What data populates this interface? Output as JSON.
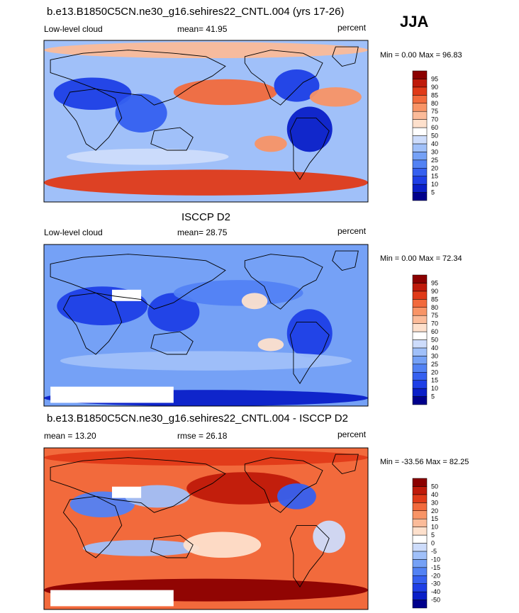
{
  "season": "JJA",
  "panels": [
    {
      "title": "b.e13.B1850C5CN.ne30_g16.sehires22_CNTL.004 (yrs 17-26)",
      "left_label": "Low-level cloud",
      "center_label": "mean=  41.95",
      "right_label": "percent",
      "minmax": "Min =    0.00 Max =   96.83"
    },
    {
      "title": "ISCCP D2",
      "left_label": "Low-level cloud",
      "center_label": "mean=  28.75",
      "right_label": "percent",
      "minmax": "Min =    0.00 Max =   72.34"
    },
    {
      "title": "b.e13.B1850C5CN.ne30_g16.sehires22_CNTL.004 - ISCCP D2",
      "left_label": "mean =  13.20",
      "center_label": "rmse =   26.18",
      "right_label": "percent",
      "minmax": "Min = -33.56 Max =   82.25"
    }
  ],
  "chart_data": [
    {
      "type": "heatmap",
      "title": "b.e13.B1850C5CN.ne30_g16.sehires22_CNTL.004 (yrs 17-26)",
      "field": "Low-level cloud",
      "units": "percent",
      "mean": 41.95,
      "min": 0.0,
      "max": 96.83,
      "colorbar_levels": [
        5,
        10,
        15,
        20,
        25,
        30,
        40,
        50,
        60,
        70,
        75,
        80,
        85,
        90,
        95
      ],
      "colorbar_colors": [
        "#00008c",
        "#0a1fc8",
        "#1e3fe6",
        "#3560f0",
        "#5282f4",
        "#75a1f6",
        "#a0c0f9",
        "#cddcfb",
        "#ffffff",
        "#fde0cc",
        "#fbbb99",
        "#f89466",
        "#f26a3c",
        "#e03a18",
        "#bf1a0a",
        "#8b0000"
      ]
    },
    {
      "type": "heatmap",
      "title": "ISCCP D2",
      "field": "Low-level cloud",
      "units": "percent",
      "mean": 28.75,
      "min": 0.0,
      "max": 72.34,
      "colorbar_levels": [
        5,
        10,
        15,
        20,
        25,
        30,
        40,
        50,
        60,
        70,
        75,
        80,
        85,
        90,
        95
      ],
      "colorbar_colors": [
        "#00008c",
        "#0a1fc8",
        "#1e3fe6",
        "#3560f0",
        "#5282f4",
        "#75a1f6",
        "#a0c0f9",
        "#cddcfb",
        "#ffffff",
        "#fde0cc",
        "#fbbb99",
        "#f89466",
        "#f26a3c",
        "#e03a18",
        "#bf1a0a",
        "#8b0000"
      ]
    },
    {
      "type": "heatmap",
      "title": "b.e13.B1850C5CN.ne30_g16.sehires22_CNTL.004 - ISCCP D2",
      "field": "Low-level cloud",
      "units": "percent",
      "mean": 13.2,
      "rmse": 26.18,
      "min": -33.56,
      "max": 82.25,
      "colorbar_levels": [
        -50,
        -40,
        -30,
        -20,
        -15,
        -10,
        -5,
        0,
        5,
        10,
        15,
        20,
        30,
        40,
        50
      ],
      "colorbar_colors": [
        "#00008c",
        "#0a1fc8",
        "#1e3fe6",
        "#3560f0",
        "#5282f4",
        "#75a1f6",
        "#a0c0f9",
        "#cddcfb",
        "#ffffff",
        "#fde0cc",
        "#fbbb99",
        "#f89466",
        "#f26a3c",
        "#e03a18",
        "#bf1a0a",
        "#8b0000"
      ]
    }
  ]
}
